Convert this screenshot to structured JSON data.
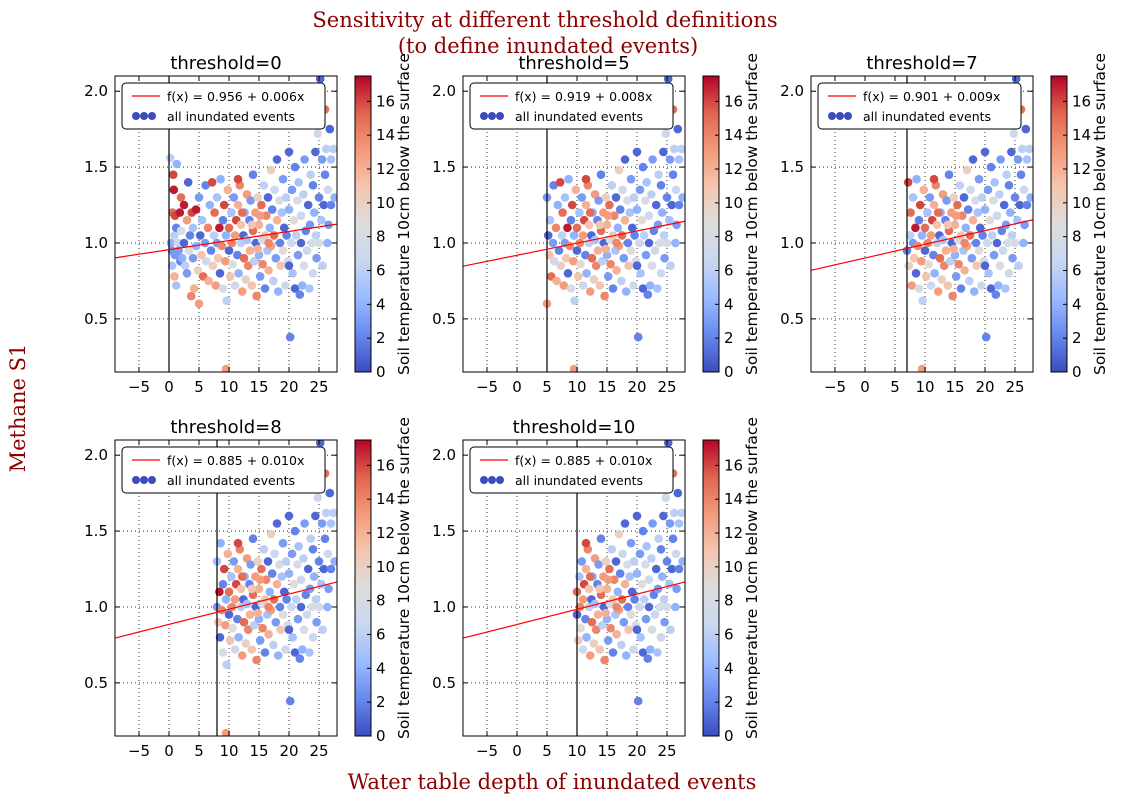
{
  "figure": {
    "suptitle_line1": "Sensitivity at different threshold definitions",
    "suptitle_line2": "(to define inundated events)",
    "ylabel": "Methane S1",
    "xlabel": "Water table depth of inundated events",
    "label_color": "#8b0000"
  },
  "colorbar": {
    "label": "Soil temperature 10cm below the surface",
    "ticks": [
      "0",
      "2",
      "4",
      "6",
      "8",
      "10",
      "12",
      "14",
      "16"
    ],
    "range": [
      0,
      17.5
    ],
    "colormap": "coolwarm",
    "stops": [
      "#3b4cc0",
      "#6788ee",
      "#9abbff",
      "#c9d7f0",
      "#dddddd",
      "#f4c6af",
      "#f49a7b",
      "#e0654f",
      "#b40426"
    ]
  },
  "legend": {
    "scatter_label": "all inundated events",
    "line_color": "#ff0000",
    "marker_color": "#3b4cc0"
  },
  "chart_data": [
    {
      "type": "scatter",
      "title": "threshold=0",
      "threshold": 0,
      "fit_label": "f(x) = 0.956 + 0.006x",
      "fit": {
        "intercept": 0.956,
        "slope": 0.006
      },
      "xlim": [
        -9,
        28
      ],
      "ylim": [
        0.15,
        2.1
      ],
      "xticks": [
        "−5",
        "0",
        "5",
        "10",
        "15",
        "20",
        "25"
      ],
      "yticks": [
        "0.5",
        "1.0",
        "1.5",
        "2.0"
      ],
      "grid": true,
      "legend_position": "top"
    },
    {
      "type": "scatter",
      "title": "threshold=5",
      "threshold": 5,
      "fit_label": "f(x) = 0.919 + 0.008x",
      "fit": {
        "intercept": 0.919,
        "slope": 0.008
      },
      "xlim": [
        -9,
        28
      ],
      "ylim": [
        0.15,
        2.1
      ],
      "xticks": [
        "−5",
        "0",
        "5",
        "10",
        "15",
        "20",
        "25"
      ],
      "yticks": [
        "0.5",
        "1.0",
        "1.5",
        "2.0"
      ],
      "grid": true,
      "legend_position": "top"
    },
    {
      "type": "scatter",
      "title": "threshold=7",
      "threshold": 7,
      "fit_label": "f(x) = 0.901 + 0.009x",
      "fit": {
        "intercept": 0.901,
        "slope": 0.009
      },
      "xlim": [
        -9,
        28
      ],
      "ylim": [
        0.15,
        2.1
      ],
      "xticks": [
        "−5",
        "0",
        "5",
        "10",
        "15",
        "20",
        "25"
      ],
      "yticks": [
        "0.5",
        "1.0",
        "1.5",
        "2.0"
      ],
      "grid": true,
      "legend_position": "top"
    },
    {
      "type": "scatter",
      "title": "threshold=8",
      "threshold": 8,
      "fit_label": "f(x) = 0.885 + 0.010x",
      "fit": {
        "intercept": 0.885,
        "slope": 0.01
      },
      "xlim": [
        -9,
        28
      ],
      "ylim": [
        0.15,
        2.1
      ],
      "xticks": [
        "−5",
        "0",
        "5",
        "10",
        "15",
        "20",
        "25"
      ],
      "yticks": [
        "0.5",
        "1.0",
        "1.5",
        "2.0"
      ],
      "grid": true,
      "legend_position": "top"
    },
    {
      "type": "scatter",
      "title": "threshold=10",
      "threshold": 10,
      "fit_label": "f(x) = 0.885 + 0.010x",
      "fit": {
        "intercept": 0.885,
        "slope": 0.01
      },
      "xlim": [
        -9,
        28
      ],
      "ylim": [
        0.15,
        2.1
      ],
      "xticks": [
        "−5",
        "0",
        "5",
        "10",
        "15",
        "20",
        "25"
      ],
      "yticks": [
        "0.5",
        "1.0",
        "1.5",
        "2.0"
      ],
      "grid": true,
      "legend_position": "top"
    }
  ],
  "points": [
    [
      0.2,
      1.56,
      6
    ],
    [
      0.3,
      1.0,
      4
    ],
    [
      0.5,
      0.95,
      3
    ],
    [
      0.5,
      0.85,
      5
    ],
    [
      0.6,
      1.2,
      15
    ],
    [
      0.7,
      1.45,
      16
    ],
    [
      0.8,
      1.35,
      17
    ],
    [
      0.9,
      1.05,
      6
    ],
    [
      0.9,
      0.78,
      12
    ],
    [
      1.0,
      1.18,
      16
    ],
    [
      1.0,
      0.92,
      3
    ],
    [
      1.2,
      1.1,
      2
    ],
    [
      1.2,
      0.72,
      5
    ],
    [
      1.3,
      1.52,
      4
    ],
    [
      1.5,
      1.0,
      7
    ],
    [
      1.6,
      0.95,
      3
    ],
    [
      1.8,
      1.2,
      17
    ],
    [
      1.9,
      0.88,
      2
    ],
    [
      2.0,
      1.3,
      15
    ],
    [
      2.0,
      1.08,
      8
    ],
    [
      2.2,
      0.9,
      4
    ],
    [
      2.5,
      1.25,
      17
    ],
    [
      2.5,
      1.0,
      1
    ],
    [
      2.7,
      0.85,
      6
    ],
    [
      3.0,
      1.15,
      13
    ],
    [
      3.0,
      0.8,
      3
    ],
    [
      3.2,
      1.4,
      1
    ],
    [
      3.3,
      0.95,
      9
    ],
    [
      3.5,
      1.05,
      2
    ],
    [
      3.7,
      0.65,
      14
    ],
    [
      3.8,
      1.2,
      16
    ],
    [
      4.0,
      0.9,
      3
    ],
    [
      4.0,
      1.1,
      5
    ],
    [
      4.2,
      0.7,
      12
    ],
    [
      4.5,
      1.22,
      17
    ],
    [
      4.5,
      0.98,
      4
    ],
    [
      4.8,
      0.82,
      10
    ],
    [
      5.0,
      1.3,
      3
    ],
    [
      5.0,
      0.6,
      13
    ],
    [
      5.2,
      1.05,
      1
    ],
    [
      5.4,
      0.92,
      11
    ],
    [
      5.5,
      1.15,
      5
    ],
    [
      5.7,
      0.78,
      15
    ],
    [
      6.0,
      1.0,
      3
    ],
    [
      6.1,
      1.38,
      2
    ],
    [
      6.2,
      0.88,
      7
    ],
    [
      6.5,
      1.1,
      14
    ],
    [
      6.6,
      0.75,
      12
    ],
    [
      6.8,
      1.25,
      4
    ],
    [
      7.0,
      0.95,
      2
    ],
    [
      7.2,
      1.4,
      16
    ],
    [
      7.3,
      0.85,
      10
    ],
    [
      7.5,
      1.05,
      6
    ],
    [
      7.6,
      1.2,
      15
    ],
    [
      7.8,
      0.72,
      13
    ],
    [
      8.0,
      1.0,
      3
    ],
    [
      8.0,
      1.3,
      5
    ],
    [
      8.2,
      0.9,
      11
    ],
    [
      8.4,
      1.1,
      17
    ],
    [
      8.5,
      0.8,
      1
    ],
    [
      8.6,
      1.42,
      4
    ],
    [
      8.8,
      0.98,
      14
    ],
    [
      9.0,
      1.15,
      2
    ],
    [
      9.0,
      0.7,
      8
    ],
    [
      9.2,
      1.25,
      16
    ],
    [
      9.4,
      0.88,
      13
    ],
    [
      9.5,
      1.05,
      4
    ],
    [
      9.6,
      0.62,
      6
    ],
    [
      9.8,
      1.35,
      12
    ],
    [
      10.0,
      0.95,
      1
    ],
    [
      10.0,
      1.1,
      15
    ],
    [
      10.2,
      0.78,
      11
    ],
    [
      10.4,
      1.2,
      5
    ],
    [
      10.5,
      1.0,
      14
    ],
    [
      10.6,
      0.86,
      9
    ],
    [
      10.8,
      1.3,
      3
    ],
    [
      11.0,
      1.05,
      13
    ],
    [
      11.0,
      0.72,
      7
    ],
    [
      11.2,
      1.15,
      16
    ],
    [
      11.4,
      0.92,
      2
    ],
    [
      11.5,
      1.25,
      12
    ],
    [
      11.6,
      0.8,
      4
    ],
    [
      11.8,
      1.38,
      14
    ],
    [
      12.0,
      1.0,
      6
    ],
    [
      12.0,
      1.12,
      11
    ],
    [
      12.2,
      0.68,
      13
    ],
    [
      12.4,
      1.05,
      1
    ],
    [
      12.5,
      0.9,
      15
    ],
    [
      12.6,
      1.2,
      4
    ],
    [
      12.8,
      0.76,
      10
    ],
    [
      13.0,
      1.32,
      13
    ],
    [
      13.0,
      1.02,
      5
    ],
    [
      13.2,
      0.85,
      14
    ],
    [
      13.4,
      1.15,
      2
    ],
    [
      13.5,
      0.95,
      12
    ],
    [
      13.6,
      1.28,
      3
    ],
    [
      13.8,
      0.72,
      11
    ],
    [
      14.0,
      1.08,
      15
    ],
    [
      14.0,
      1.45,
      2
    ],
    [
      14.2,
      0.88,
      6
    ],
    [
      14.4,
      1.2,
      13
    ],
    [
      14.5,
      1.0,
      1
    ],
    [
      14.6,
      0.65,
      14
    ],
    [
      14.8,
      1.3,
      10
    ],
    [
      15.0,
      0.92,
      4
    ],
    [
      15.0,
      1.12,
      12
    ],
    [
      15.2,
      0.78,
      3
    ],
    [
      15.4,
      1.25,
      15
    ],
    [
      15.5,
      1.02,
      8
    ],
    [
      15.6,
      0.86,
      14
    ],
    [
      15.8,
      1.38,
      6
    ],
    [
      16.0,
      1.05,
      11
    ],
    [
      16.0,
      0.7,
      2
    ],
    [
      16.2,
      1.18,
      14
    ],
    [
      16.4,
      0.95,
      5
    ],
    [
      16.5,
      1.3,
      1
    ],
    [
      16.6,
      0.82,
      12
    ],
    [
      16.8,
      1.1,
      4
    ],
    [
      17.0,
      1.48,
      10
    ],
    [
      17.0,
      0.98,
      13
    ],
    [
      17.2,
      1.22,
      2
    ],
    [
      17.4,
      0.75,
      6
    ],
    [
      17.5,
      1.05,
      15
    ],
    [
      17.6,
      1.35,
      7
    ],
    [
      17.8,
      0.9,
      3
    ],
    [
      18.0,
      1.15,
      12
    ],
    [
      18.0,
      1.55,
      1
    ],
    [
      18.2,
      0.68,
      4
    ],
    [
      18.4,
      1.28,
      8
    ],
    [
      18.5,
      1.0,
      2
    ],
    [
      18.6,
      0.85,
      11
    ],
    [
      18.8,
      1.2,
      5
    ],
    [
      19.0,
      1.42,
      3
    ],
    [
      19.0,
      0.95,
      9
    ],
    [
      19.2,
      1.1,
      1
    ],
    [
      19.4,
      0.72,
      7
    ],
    [
      19.5,
      1.3,
      6
    ],
    [
      19.6,
      1.05,
      2
    ],
    [
      19.8,
      0.88,
      8
    ],
    [
      20.0,
      1.22,
      4
    ],
    [
      20.0,
      1.6,
      1
    ],
    [
      20.2,
      0.38,
      2
    ],
    [
      20.4,
      1.0,
      7
    ],
    [
      20.5,
      1.35,
      3
    ],
    [
      20.6,
      0.8,
      5
    ],
    [
      20.8,
      1.15,
      9
    ],
    [
      21.0,
      1.5,
      2
    ],
    [
      21.0,
      0.7,
      1
    ],
    [
      21.2,
      1.05,
      6
    ],
    [
      21.4,
      1.28,
      8
    ],
    [
      21.5,
      0.92,
      3
    ],
    [
      21.6,
      1.4,
      5
    ],
    [
      21.8,
      0.66,
      2
    ],
    [
      22.0,
      1.18,
      7
    ],
    [
      22.0,
      1.0,
      1
    ],
    [
      22.2,
      0.72,
      4
    ],
    [
      22.4,
      1.32,
      6
    ],
    [
      22.5,
      0.85,
      8
    ],
    [
      22.6,
      1.55,
      3
    ],
    [
      22.8,
      1.08,
      2
    ],
    [
      23.0,
      0.95,
      7
    ],
    [
      23.2,
      1.25,
      1
    ],
    [
      23.4,
      0.7,
      5
    ],
    [
      23.5,
      1.12,
      3
    ],
    [
      23.6,
      1.45,
      6
    ],
    [
      23.8,
      1.0,
      8
    ],
    [
      24.0,
      1.38,
      2
    ],
    [
      24.0,
      0.8,
      7
    ],
    [
      24.2,
      1.2,
      4
    ],
    [
      24.4,
      1.6,
      1
    ],
    [
      24.5,
      1.05,
      6
    ],
    [
      24.6,
      0.9,
      3
    ],
    [
      24.8,
      1.72,
      7
    ],
    [
      25.0,
      1.3,
      2
    ],
    [
      25.0,
      1.0,
      8
    ],
    [
      25.2,
      2.08,
      1
    ],
    [
      25.4,
      1.15,
      5
    ],
    [
      25.5,
      1.55,
      3
    ],
    [
      25.6,
      0.85,
      6
    ],
    [
      25.8,
      1.25,
      1
    ],
    [
      26.0,
      1.88,
      15
    ],
    [
      26.0,
      1.45,
      2
    ],
    [
      26.2,
      1.62,
      6
    ],
    [
      26.4,
      1.0,
      4
    ],
    [
      26.5,
      1.35,
      7
    ],
    [
      26.6,
      1.12,
      3
    ],
    [
      26.8,
      1.75,
      1
    ],
    [
      27.0,
      1.55,
      5
    ],
    [
      27.0,
      1.25,
      2
    ],
    [
      27.4,
      1.62,
      6
    ],
    [
      27.6,
      1.3,
      4
    ],
    [
      9.5,
      0.17,
      13
    ],
    [
      20.0,
      0.85,
      1
    ],
    [
      11.5,
      1.42,
      16
    ],
    [
      13.8,
      1.12,
      11
    ],
    [
      15.2,
      1.18,
      13
    ],
    [
      16.6,
      1.0,
      14
    ],
    [
      12.2,
      1.2,
      15
    ],
    [
      14.8,
      0.96,
      12
    ]
  ]
}
